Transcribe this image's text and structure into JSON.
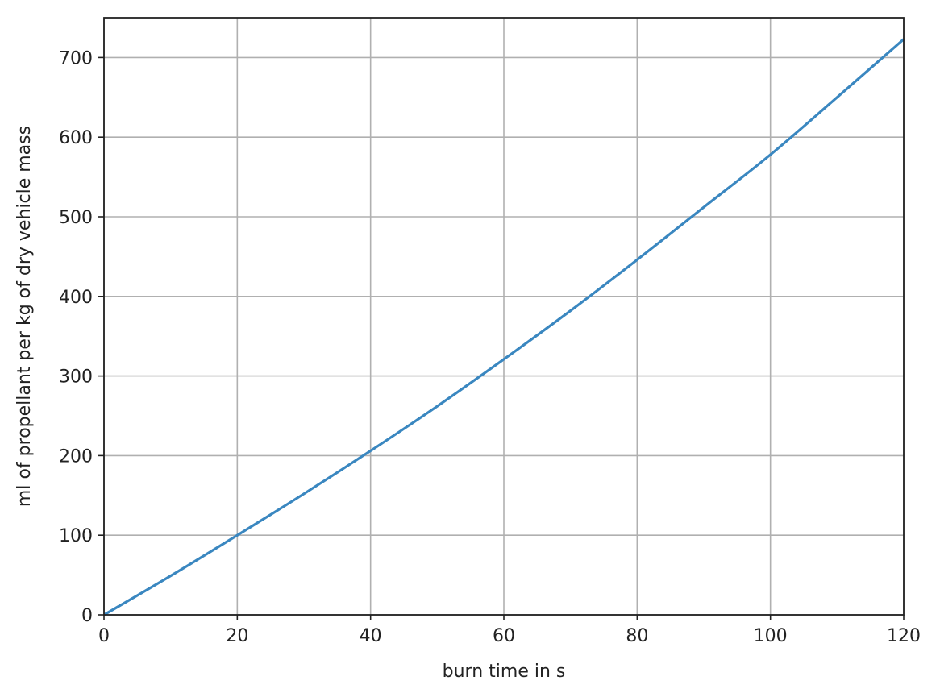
{
  "chart_data": {
    "type": "line",
    "title": "",
    "xlabel": "burn time in s",
    "ylabel": "ml of propellant per kg of dry vehicle mass",
    "xlim": [
      0,
      120
    ],
    "ylim": [
      0,
      750
    ],
    "x_ticks": [
      "0",
      "20",
      "40",
      "60",
      "80",
      "100",
      "120"
    ],
    "y_ticks": [
      "0",
      "100",
      "200",
      "300",
      "400",
      "500",
      "600",
      "700"
    ],
    "grid": true,
    "legend": "none",
    "series": [
      {
        "color": "#3a87c0",
        "x": [
          0,
          10,
          20,
          30,
          40,
          50,
          60,
          70,
          80,
          90,
          100,
          110,
          120
        ],
        "y": [
          0,
          49,
          100,
          152,
          206,
          262,
          321,
          382,
          446,
          512,
          578,
          650,
          723
        ]
      }
    ]
  }
}
